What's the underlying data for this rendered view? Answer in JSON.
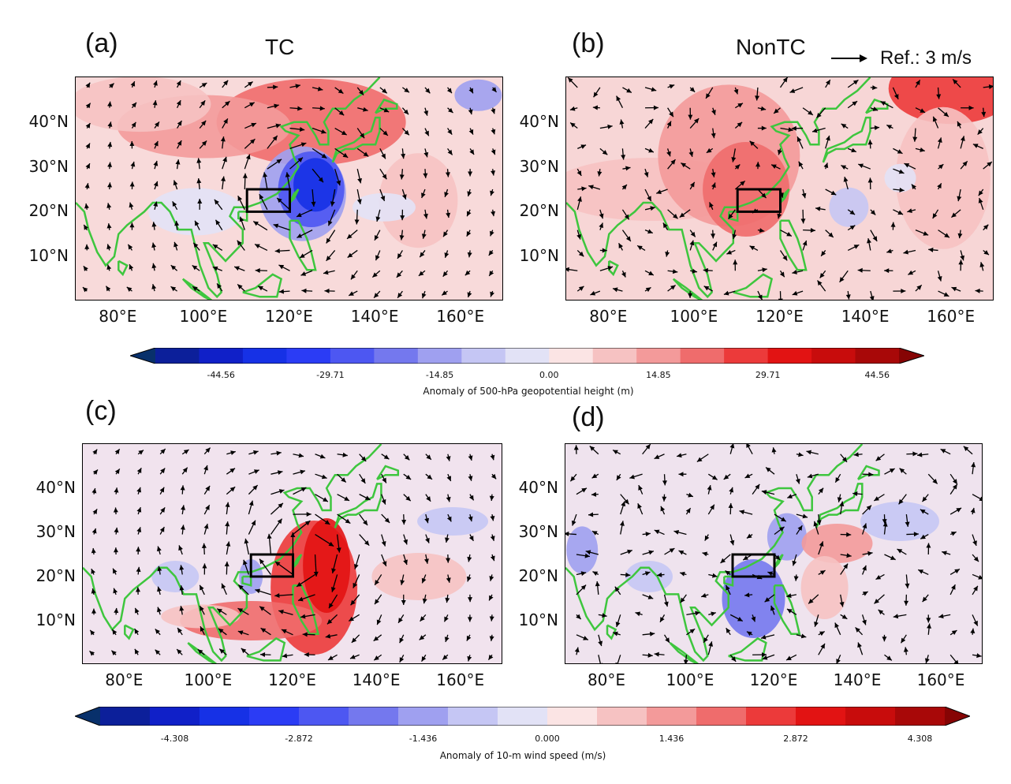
{
  "panels": [
    {
      "letter": "(a)",
      "title": "TC",
      "field": "geopotential"
    },
    {
      "letter": "(b)",
      "title": "NonTC",
      "field": "geopotential"
    },
    {
      "letter": "(c)",
      "title": "",
      "field": "wind"
    },
    {
      "letter": "(d)",
      "title": "",
      "field": "wind"
    }
  ],
  "reference_vector": {
    "label": "Ref.: 3 m/s"
  },
  "axes": {
    "lat_ticks": [
      "40°N",
      "30°N",
      "20°N",
      "10°N"
    ],
    "lon_ticks": [
      "80°E",
      "100°E",
      "120°E",
      "140°E",
      "160°E"
    ],
    "lon_range": [
      70,
      170
    ],
    "lat_range": [
      0,
      50
    ]
  },
  "colorbar_top": {
    "label": "Anomaly of 500-hPa geopotential height (m)",
    "ticks": [
      "-44.56",
      "-29.71",
      "-14.85",
      "0.00",
      "14.85",
      "29.71",
      "44.56"
    ]
  },
  "colorbar_bottom": {
    "label": "Anomaly of 10-m wind speed (m/s)",
    "ticks": [
      "-4.308",
      "-2.872",
      "-1.436",
      "0.000",
      "1.436",
      "2.872",
      "4.308"
    ]
  },
  "colors": {
    "diverging": [
      "#08306b",
      "#0c1f9a",
      "#1020c8",
      "#1631e6",
      "#2b3cf5",
      "#4d57f2",
      "#7478ee",
      "#9fa0f0",
      "#c5c6f4",
      "#e2e2f6",
      "#fbe4e4",
      "#f6c2c2",
      "#f39a9a",
      "#ef6c6c",
      "#ec3a3a",
      "#e21313",
      "#c80c0c",
      "#a80808",
      "#860404"
    ],
    "coastline": "#3ec63e",
    "vector": "#000000"
  }
}
